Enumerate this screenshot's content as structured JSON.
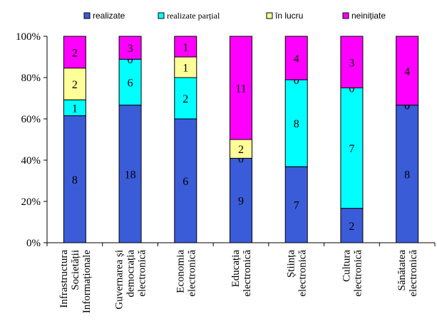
{
  "chart_data": {
    "type": "bar",
    "stacked": true,
    "normalized": true,
    "categories": [
      [
        "Infrastructura",
        "Societății",
        "Informaționale"
      ],
      [
        "Guvernarea și",
        "democrația",
        "electronică"
      ],
      [
        "Economia",
        "electronică"
      ],
      [
        "Educația",
        "electronică"
      ],
      [
        "Știința",
        "electronică"
      ],
      [
        "Cultura",
        "electronică"
      ],
      [
        "Sănătatea",
        "electronică"
      ]
    ],
    "series": [
      {
        "name": "realizate",
        "color": "#3b5cd9",
        "values": [
          8,
          18,
          6,
          9,
          7,
          2,
          8
        ]
      },
      {
        "name": "realizate parțial",
        "color": "#00ffff",
        "values": [
          1,
          6,
          2,
          0,
          8,
          7,
          0
        ]
      },
      {
        "name": "în lucru",
        "color": "#ffff99",
        "values": [
          2,
          0,
          1,
          2,
          0,
          0,
          0
        ]
      },
      {
        "name": "neinițiate",
        "color": "#ff00ff",
        "values": [
          2,
          3,
          1,
          11,
          4,
          3,
          4
        ]
      }
    ],
    "yticks": [
      "0%",
      "20%",
      "40%",
      "60%",
      "80%",
      "100%"
    ],
    "ylim": [
      0,
      100
    ],
    "legend": "top",
    "grid": false
  }
}
